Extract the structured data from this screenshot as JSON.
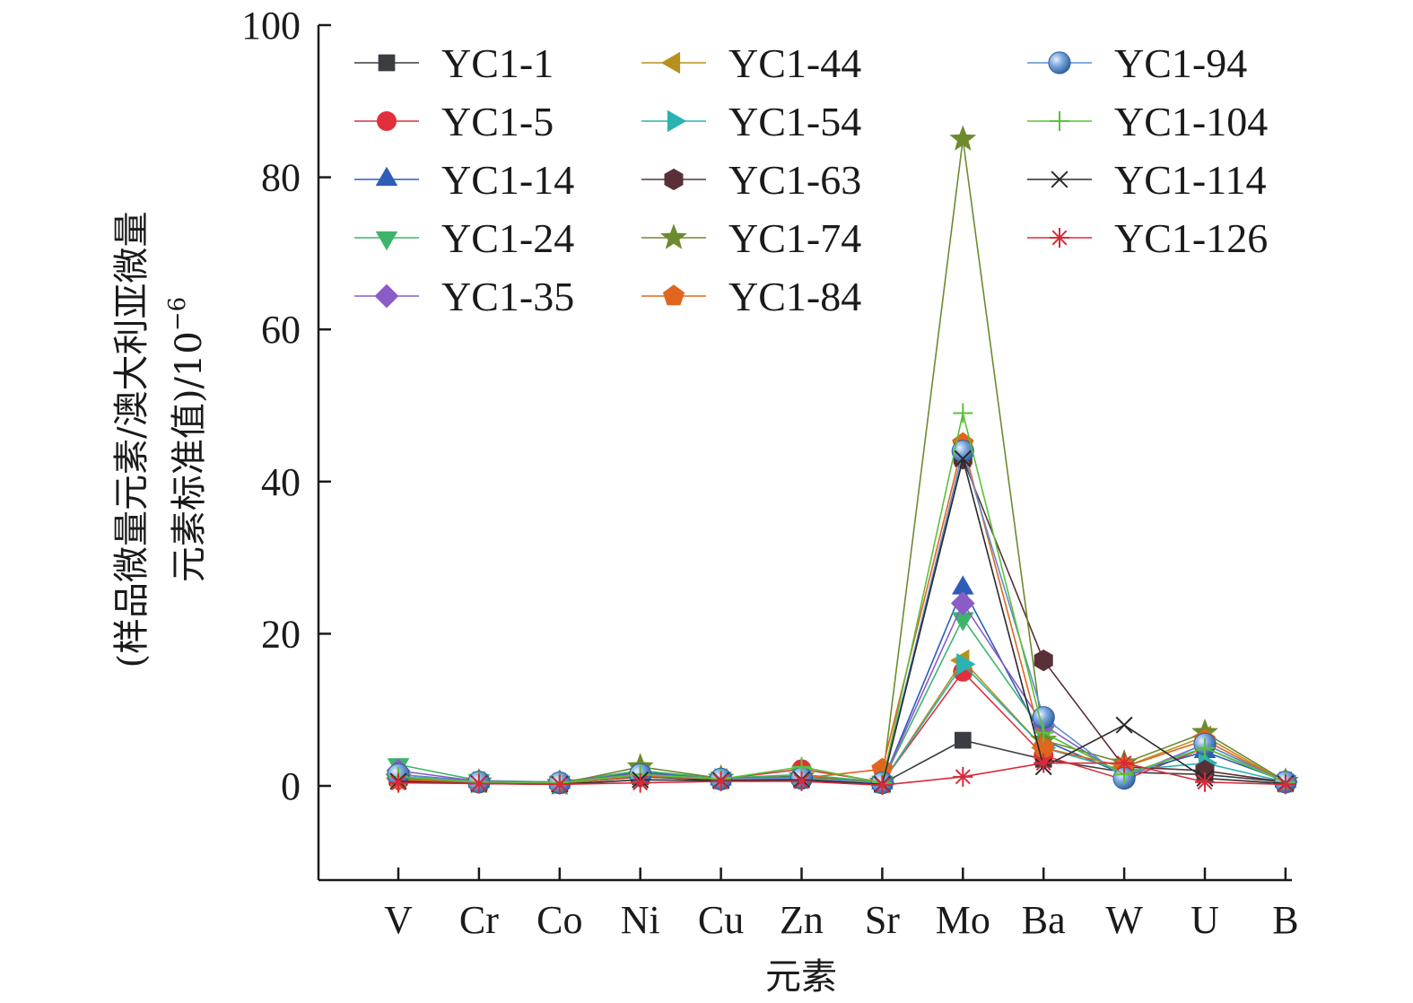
{
  "chart_data": {
    "type": "line",
    "xlabel": "元素",
    "ylabel_line1": "(样品微量元素/澳大利亚微量",
    "ylabel_line2": "元素标准值)/10",
    "ylabel_exp": "−6",
    "ylim": [
      -12,
      100
    ],
    "yticks": [
      0,
      20,
      40,
      60,
      80,
      100
    ],
    "categories": [
      "V",
      "Cr",
      "Co",
      "Ni",
      "Cu",
      "Zn",
      "Sr",
      "Mo",
      "Ba",
      "W",
      "U",
      "B"
    ],
    "legend_position": "top-inside",
    "series": [
      {
        "name": "YC1-1",
        "marker": "square",
        "color": "#3a3d42",
        "values": [
          1.0,
          0.5,
          0.3,
          1.2,
          0.8,
          1.0,
          0.3,
          6.0,
          3.5,
          1.8,
          1.5,
          0.5
        ]
      },
      {
        "name": "YC1-5",
        "marker": "circle",
        "color": "#e0303c",
        "values": [
          1.2,
          0.5,
          0.4,
          1.5,
          0.9,
          2.2,
          0.5,
          15.0,
          4.0,
          0.8,
          5.0,
          0.5
        ]
      },
      {
        "name": "YC1-14",
        "marker": "triangle-up",
        "color": "#2e5db8",
        "values": [
          1.5,
          0.6,
          0.5,
          1.8,
          0.9,
          1.3,
          0.4,
          26.0,
          6.0,
          1.5,
          4.5,
          0.6
        ]
      },
      {
        "name": "YC1-24",
        "marker": "triangle-down",
        "color": "#3cb56a",
        "values": [
          2.8,
          0.7,
          0.5,
          2.0,
          1.0,
          1.5,
          0.5,
          22.0,
          7.0,
          1.5,
          5.0,
          0.6
        ]
      },
      {
        "name": "YC1-35",
        "marker": "diamond",
        "color": "#8a5cc8",
        "values": [
          2.0,
          0.6,
          0.5,
          1.6,
          0.9,
          1.2,
          0.5,
          24.0,
          8.0,
          1.2,
          5.5,
          0.6
        ]
      },
      {
        "name": "YC1-44",
        "marker": "triangle-left",
        "color": "#b8901c",
        "values": [
          1.0,
          0.5,
          0.3,
          1.5,
          0.9,
          1.0,
          0.4,
          16.5,
          5.0,
          2.5,
          6.5,
          0.5
        ]
      },
      {
        "name": "YC1-54",
        "marker": "triangle-right",
        "color": "#2ab3b0",
        "values": [
          1.2,
          0.5,
          0.3,
          1.4,
          0.9,
          1.0,
          0.4,
          16.0,
          5.0,
          2.0,
          3.0,
          0.5
        ]
      },
      {
        "name": "YC1-63",
        "marker": "hexagon",
        "color": "#5a3038",
        "values": [
          0.8,
          0.4,
          0.3,
          1.2,
          0.8,
          0.9,
          0.3,
          43.0,
          16.5,
          2.5,
          2.0,
          0.5
        ]
      },
      {
        "name": "YC1-74",
        "marker": "star",
        "color": "#6e8a2e",
        "values": [
          1.0,
          0.5,
          0.3,
          2.5,
          1.0,
          1.2,
          0.5,
          85.0,
          6.0,
          3.0,
          7.0,
          0.6
        ]
      },
      {
        "name": "YC1-84",
        "marker": "pentagon",
        "color": "#e0661e",
        "values": [
          0.8,
          0.4,
          0.3,
          1.3,
          0.9,
          1.0,
          2.2,
          45.0,
          5.0,
          2.5,
          6.0,
          0.5
        ]
      },
      {
        "name": "YC1-94",
        "marker": "sphere",
        "color": "#5b8fd0",
        "values": [
          1.5,
          0.5,
          0.4,
          1.5,
          0.9,
          1.0,
          0.4,
          44.0,
          9.0,
          1.0,
          5.5,
          0.5
        ]
      },
      {
        "name": "YC1-104",
        "marker": "plus",
        "color": "#5cc03a",
        "values": [
          1.2,
          0.5,
          0.4,
          1.5,
          0.9,
          2.5,
          0.4,
          49.0,
          7.0,
          1.5,
          5.0,
          0.5
        ]
      },
      {
        "name": "YC1-114",
        "marker": "x",
        "color": "#2a2a2a",
        "values": [
          0.6,
          0.3,
          0.2,
          0.8,
          0.7,
          0.8,
          0.2,
          43.0,
          2.5,
          8.0,
          1.0,
          0.3
        ]
      },
      {
        "name": "YC1-126",
        "marker": "asterisk",
        "color": "#d82a3a",
        "values": [
          0.4,
          0.3,
          0.2,
          0.4,
          0.6,
          0.6,
          0.1,
          1.2,
          3.0,
          3.0,
          0.5,
          0.2
        ]
      }
    ]
  }
}
